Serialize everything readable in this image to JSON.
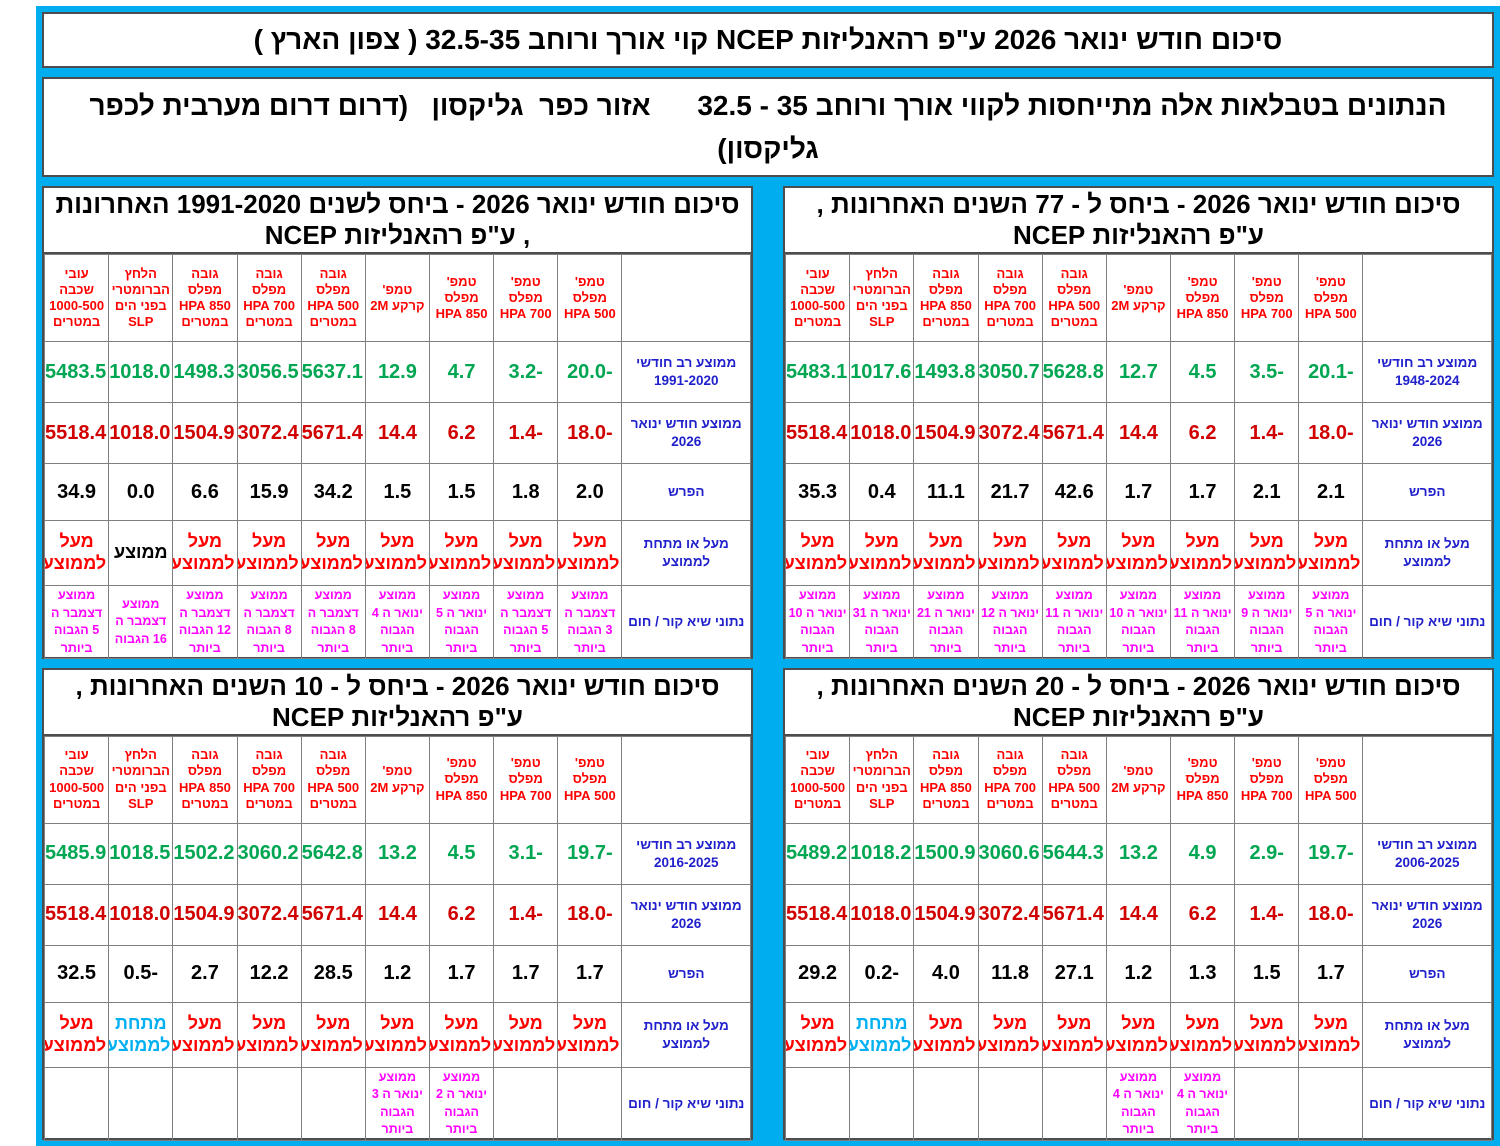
{
  "page": {
    "title": "סיכום חודש ינואר 2026 ע\"פ רהאנליזות NCEP קוי אורך ורוחב 32.5-35 ( צפון הארץ )",
    "subtitle": "הנתונים בטבלאות אלה מתייחסות לקווי אורך ורוחב 35 - 32.5      אזור כפר  גליקסון   (דרום דרום מערבית לכפר גליקסון)",
    "colors": {
      "background_cyan": "#00AEEF",
      "column_header_red": "#FF0000",
      "longterm_green": "#00A651",
      "current_month_red": "#D10000",
      "row_label_blue": "#2020CC",
      "records_magenta": "#FF00FF",
      "below_average_cyan": "#00B0F0"
    }
  },
  "columns": [
    "",
    "טמפ' מפלס 500 HPA",
    "טמפ' מפלס 700 HPA",
    "טמפ' מפלס 850 HPA",
    "טמפ' קרקע 2M",
    "גובה מפלס 500 HPA במטרים",
    "גובה מפלס 700 HPA במטרים",
    "גובה מפלס 850 HPA במטרים",
    "הלחץ הברומטרי בפני הים SLP",
    "עובי שכבה 1000-500 במטרים"
  ],
  "row_labels": {
    "longterm": "ממוצע רב חודשי",
    "current": "ממוצע חודש ינואר 2026",
    "diff": "הפרש",
    "above_below": "מעל או מתחת לממוצע",
    "records": "נתוני שיא קור / חום"
  },
  "cell_text": {
    "above": "מעל לממוצע",
    "average": "ממוצע",
    "below": "מתחת לממוצע"
  },
  "tables": [
    {
      "id": "77-years",
      "title": "סיכום חודש ינואר 2026  -  ביחס ל - 77 השנים האחרונות , ע\"פ רהאנליזות NCEP",
      "longterm_years": "1948-2024",
      "longterm": [
        "-20.1",
        "-3.5",
        "4.5",
        "12.7",
        "5628.8",
        "3050.7",
        "1493.8",
        "1017.6",
        "5483.1"
      ],
      "current": [
        "-18.0",
        "-1.4",
        "6.2",
        "14.4",
        "5671.4",
        "3072.4",
        "1504.9",
        "1018.0",
        "5518.4"
      ],
      "diff": [
        "2.1",
        "2.1",
        "1.7",
        "1.7",
        "42.6",
        "21.7",
        "11.1",
        "0.4",
        "35.3"
      ],
      "above_below": [
        "above",
        "above",
        "above",
        "above",
        "above",
        "above",
        "above",
        "above",
        "above"
      ],
      "records": [
        "ממוצע ינואר ה 5 הגבוה ביותר",
        "ממוצע ינואר ה 9 הגבוה ביותר",
        "ממוצע ינואר ה 11 הגבוה ביותר",
        "ממוצע ינואר ה 10 הגבוה ביותר",
        "ממוצע ינואר ה 11 הגבוה ביותר",
        "ממוצע ינואר ה 12 הגבוה ביותר",
        "ממוצע ינואר ה 21 הגבוה ביותר",
        "ממוצע ינואר ה 31 הגבוה ביותר",
        "ממוצע ינואר ה 10 הגבוה ביותר"
      ]
    },
    {
      "id": "1991-2020",
      "title": "סיכום חודש ינואר 2026  -  ביחס לשנים 1991-2020 האחרונות , ע\"פ רהאנליזות NCEP",
      "longterm_years": "1991-2020",
      "longterm": [
        "-20.0",
        "-3.2",
        "4.7",
        "12.9",
        "5637.1",
        "3056.5",
        "1498.3",
        "1018.0",
        "5483.5"
      ],
      "current": [
        "-18.0",
        "-1.4",
        "6.2",
        "14.4",
        "5671.4",
        "3072.4",
        "1504.9",
        "1018.0",
        "5518.4"
      ],
      "diff": [
        "2.0",
        "1.8",
        "1.5",
        "1.5",
        "34.2",
        "15.9",
        "6.6",
        "0.0",
        "34.9"
      ],
      "above_below": [
        "above",
        "above",
        "above",
        "above",
        "above",
        "above",
        "above",
        "average",
        "above"
      ],
      "records": [
        "ממוצע דצמבר ה 3 הגבוה ביותר",
        "ממוצע דצמבר ה 5 הגבוה ביותר",
        "ממוצע ינואר ה 5 הגבוה ביותר",
        "ממוצע ינואר ה 4 הגבוה ביותר",
        "ממוצע דצמבר ה 8 הגבוה ביותר",
        "ממוצע דצמבר ה 8 הגבוה ביותר",
        "ממוצע דצמבר ה 12 הגבוה ביותר",
        "ממוצע דצמבר ה 16 הגבוה",
        "ממוצע דצמבר ה 5 הגבוה ביותר"
      ]
    },
    {
      "id": "20-years",
      "title": "סיכום חודש ינואר 2026  -  ביחס ל - 20 השנים האחרונות , ע\"פ רהאנליזות NCEP",
      "longterm_years": "2006-2025",
      "longterm": [
        "-19.7",
        "-2.9",
        "4.9",
        "13.2",
        "5644.3",
        "3060.6",
        "1500.9",
        "1018.2",
        "5489.2"
      ],
      "current": [
        "-18.0",
        "-1.4",
        "6.2",
        "14.4",
        "5671.4",
        "3072.4",
        "1504.9",
        "1018.0",
        "5518.4"
      ],
      "diff": [
        "1.7",
        "1.5",
        "1.3",
        "1.2",
        "27.1",
        "11.8",
        "4.0",
        "-0.2",
        "29.2"
      ],
      "above_below": [
        "above",
        "above",
        "above",
        "above",
        "above",
        "above",
        "above",
        "below",
        "above"
      ],
      "records": [
        "",
        "",
        "ממוצע ינואר ה 4 הגבוה ביותר",
        "ממוצע ינואר ה 4 הגבוה ביותר",
        "",
        "",
        "",
        "",
        ""
      ]
    },
    {
      "id": "10-years",
      "title": "סיכום חודש ינואר 2026  -  ביחס ל - 10 השנים האחרונות , ע\"פ רהאנליזות NCEP",
      "longterm_years": "2016-2025",
      "longterm": [
        "-19.7",
        "-3.1",
        "4.5",
        "13.2",
        "5642.8",
        "3060.2",
        "1502.2",
        "1018.5",
        "5485.9"
      ],
      "current": [
        "-18.0",
        "-1.4",
        "6.2",
        "14.4",
        "5671.4",
        "3072.4",
        "1504.9",
        "1018.0",
        "5518.4"
      ],
      "diff": [
        "1.7",
        "1.7",
        "1.7",
        "1.2",
        "28.5",
        "12.2",
        "2.7",
        "-0.5",
        "32.5"
      ],
      "above_below": [
        "above",
        "above",
        "above",
        "above",
        "above",
        "above",
        "above",
        "below",
        "above"
      ],
      "records": [
        "",
        "",
        "ממוצע ינואר ה 2 הגבוה ביותר",
        "ממוצע ינואר ה 3 הגבוה ביותר",
        "",
        "",
        "",
        "",
        ""
      ]
    }
  ]
}
